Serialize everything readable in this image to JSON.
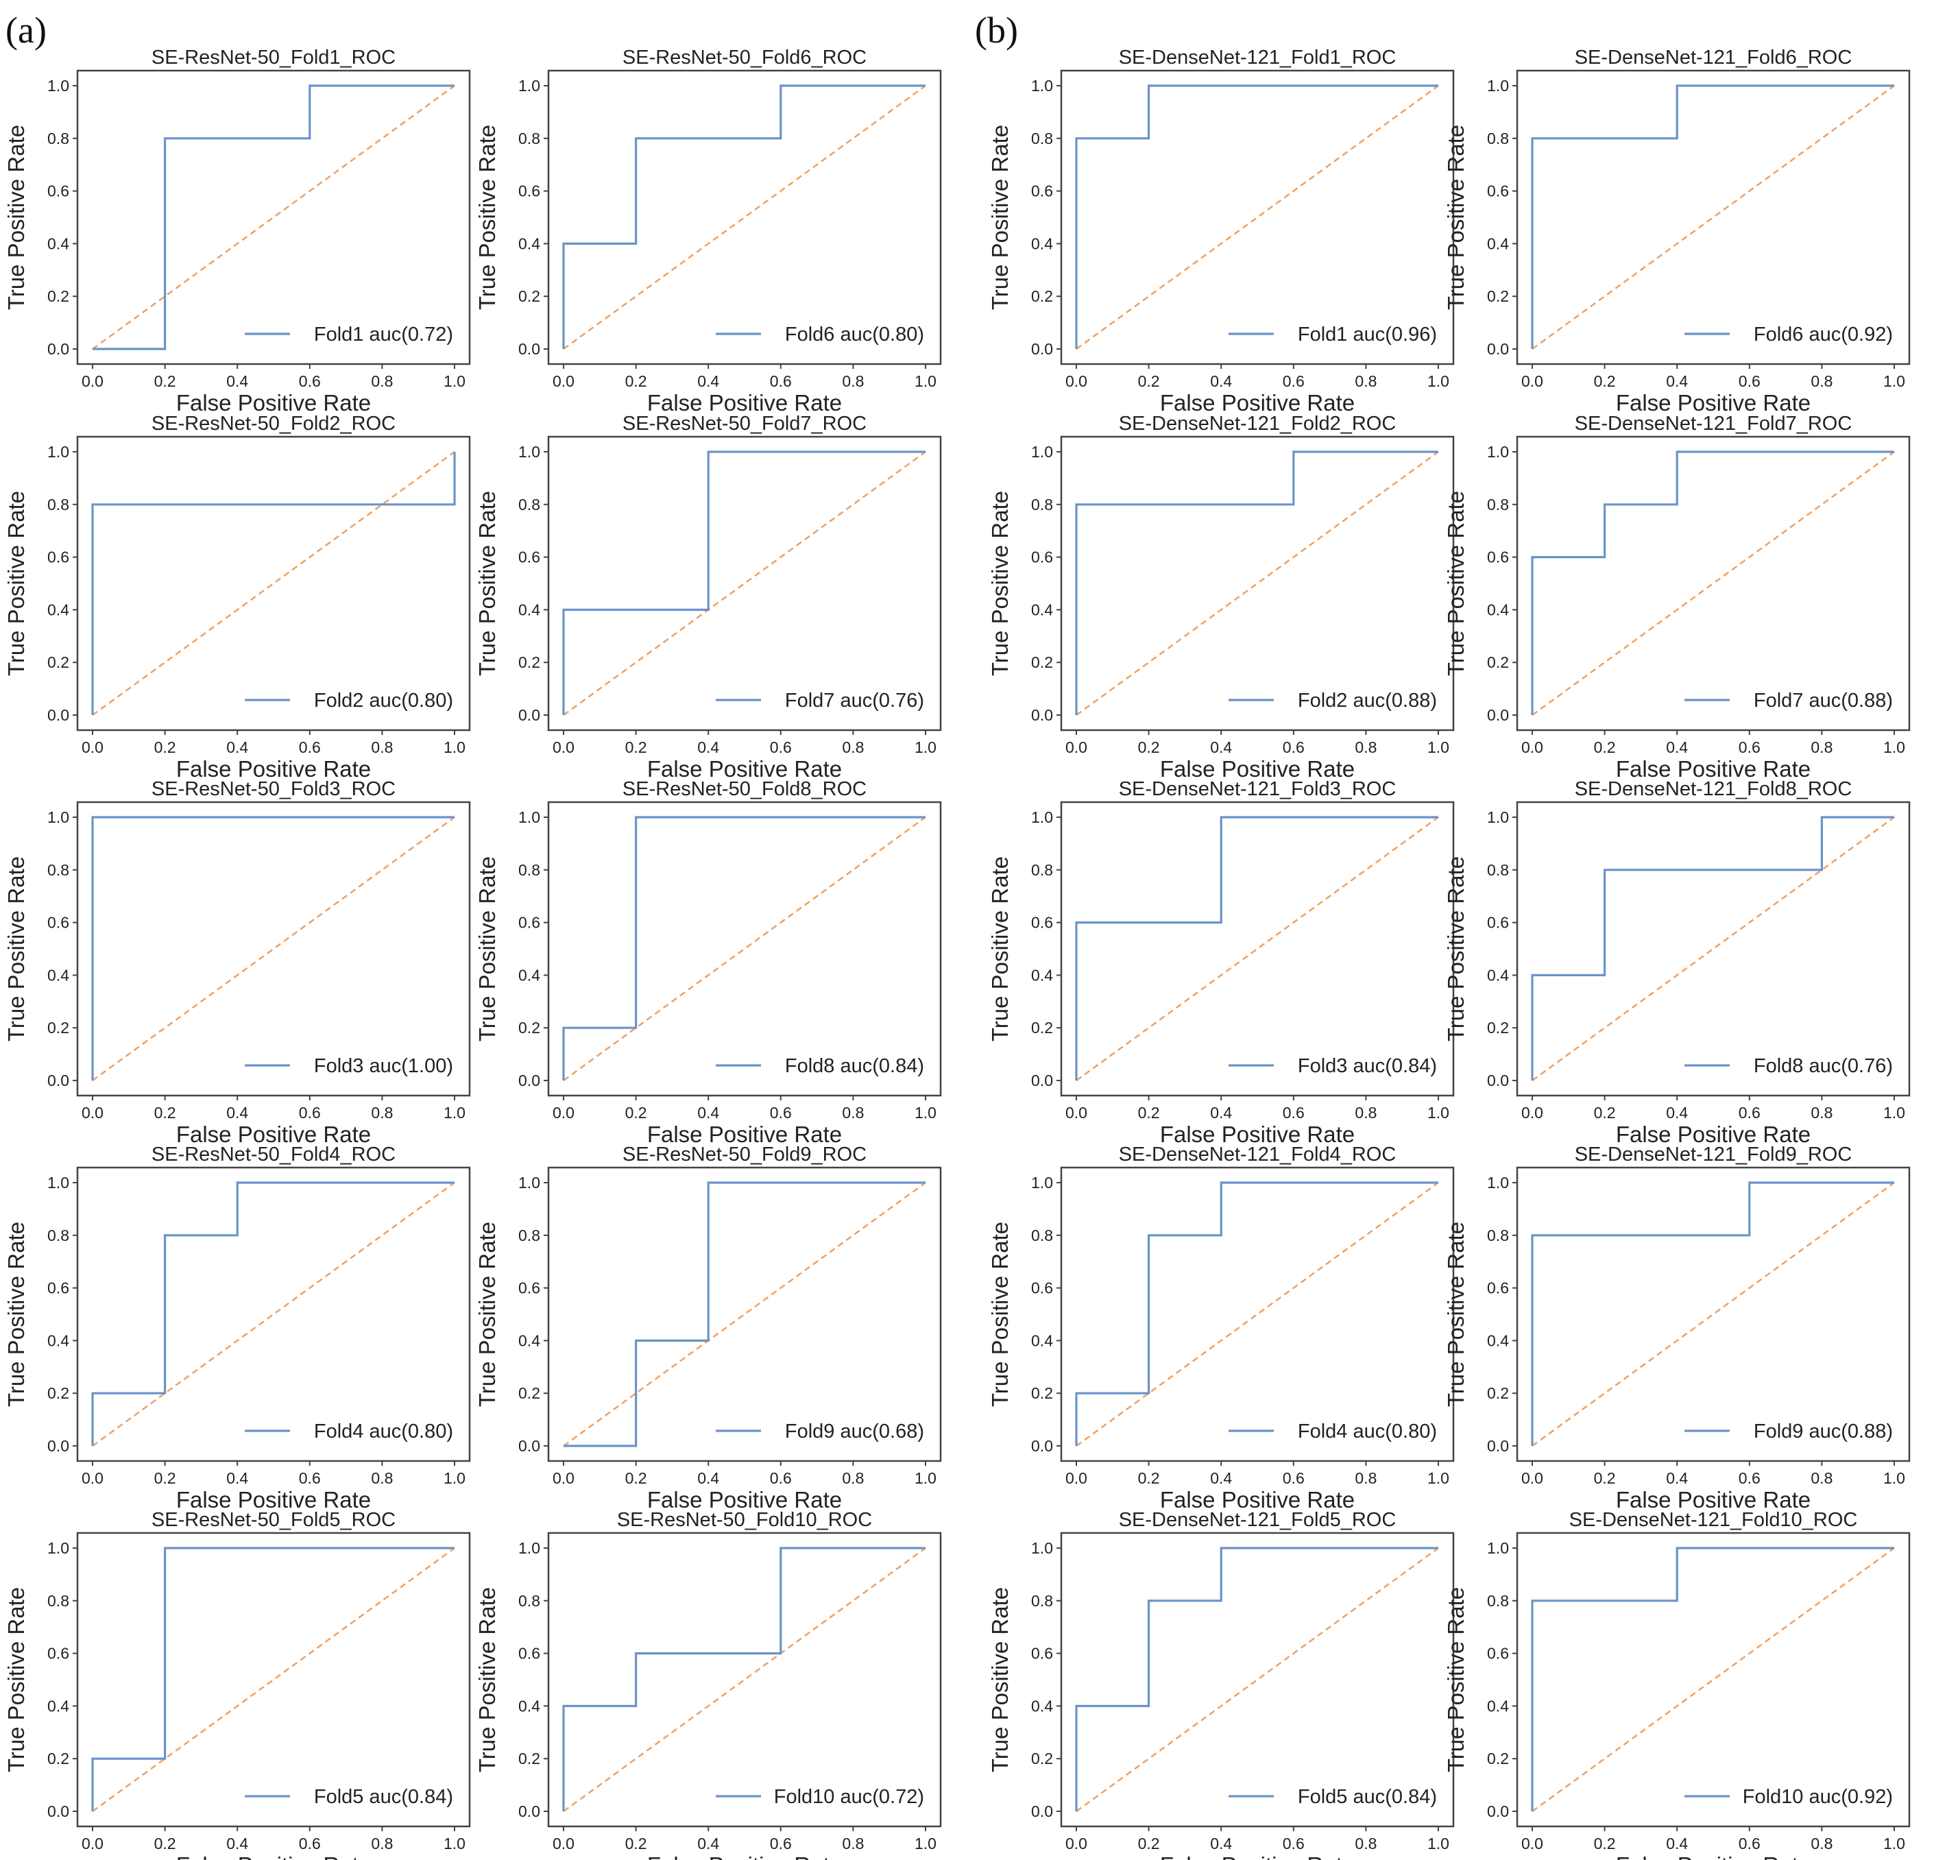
{
  "panel_labels": [
    "(a)",
    "(b)"
  ],
  "colors": {
    "roc": "#6a93c9",
    "diagonal": "#f0a060",
    "axes": "#444444",
    "text": "#222222"
  },
  "chart_data": [
    {
      "type": "line",
      "panel": "a",
      "title": "SE-ResNet-50_Fold1_ROC",
      "xlabel": "False Positive Rate",
      "ylabel": "True Positive Rate",
      "xlim": [
        0,
        1
      ],
      "ylim": [
        0,
        1
      ],
      "xticks": [
        "0.0",
        "0.2",
        "0.4",
        "0.6",
        "0.8",
        "1.0"
      ],
      "yticks": [
        "0.0",
        "0.2",
        "0.4",
        "0.6",
        "0.8",
        "1.0"
      ],
      "grid": false,
      "legend_position": "lower-right",
      "legend_label": "Fold1 auc(0.72)",
      "x": [
        0,
        0.2,
        0.2,
        0.6,
        0.6,
        1.0
      ],
      "y": [
        0,
        0,
        0.8,
        0.8,
        1.0,
        1.0
      ]
    },
    {
      "type": "line",
      "panel": "a",
      "title": "SE-ResNet-50_Fold2_ROC",
      "xlabel": "False Positive Rate",
      "ylabel": "True Positive Rate",
      "xlim": [
        0,
        1
      ],
      "ylim": [
        0,
        1
      ],
      "xticks": [
        "0.0",
        "0.2",
        "0.4",
        "0.6",
        "0.8",
        "1.0"
      ],
      "yticks": [
        "0.0",
        "0.2",
        "0.4",
        "0.6",
        "0.8",
        "1.0"
      ],
      "grid": false,
      "legend_position": "lower-right",
      "legend_label": "Fold2 auc(0.80)",
      "x": [
        0,
        0,
        1.0,
        1.0
      ],
      "y": [
        0,
        0.8,
        0.8,
        1.0
      ]
    },
    {
      "type": "line",
      "panel": "a",
      "title": "SE-ResNet-50_Fold3_ROC",
      "xlabel": "False Positive Rate",
      "ylabel": "True Positive Rate",
      "xlim": [
        0,
        1
      ],
      "ylim": [
        0,
        1
      ],
      "xticks": [
        "0.0",
        "0.2",
        "0.4",
        "0.6",
        "0.8",
        "1.0"
      ],
      "yticks": [
        "0.0",
        "0.2",
        "0.4",
        "0.6",
        "0.8",
        "1.0"
      ],
      "grid": false,
      "legend_position": "lower-right",
      "legend_label": "Fold3 auc(1.00)",
      "x": [
        0,
        0,
        1.0
      ],
      "y": [
        0,
        1.0,
        1.0
      ]
    },
    {
      "type": "line",
      "panel": "a",
      "title": "SE-ResNet-50_Fold4_ROC",
      "xlabel": "False Positive Rate",
      "ylabel": "True Positive Rate",
      "xlim": [
        0,
        1
      ],
      "ylim": [
        0,
        1
      ],
      "xticks": [
        "0.0",
        "0.2",
        "0.4",
        "0.6",
        "0.8",
        "1.0"
      ],
      "yticks": [
        "0.0",
        "0.2",
        "0.4",
        "0.6",
        "0.8",
        "1.0"
      ],
      "grid": false,
      "legend_position": "lower-right",
      "legend_label": "Fold4 auc(0.80)",
      "x": [
        0,
        0,
        0.2,
        0.2,
        0.4,
        0.4,
        1.0
      ],
      "y": [
        0,
        0.2,
        0.2,
        0.8,
        0.8,
        1.0,
        1.0
      ]
    },
    {
      "type": "line",
      "panel": "a",
      "title": "SE-ResNet-50_Fold5_ROC",
      "xlabel": "False Positive Rate",
      "ylabel": "True Positive Rate",
      "xlim": [
        0,
        1
      ],
      "ylim": [
        0,
        1
      ],
      "xticks": [
        "0.0",
        "0.2",
        "0.4",
        "0.6",
        "0.8",
        "1.0"
      ],
      "yticks": [
        "0.0",
        "0.2",
        "0.4",
        "0.6",
        "0.8",
        "1.0"
      ],
      "grid": false,
      "legend_position": "lower-right",
      "legend_label": "Fold5 auc(0.84)",
      "x": [
        0,
        0,
        0.2,
        0.2,
        1.0
      ],
      "y": [
        0,
        0.2,
        0.2,
        1.0,
        1.0
      ]
    },
    {
      "type": "line",
      "panel": "a",
      "title": "SE-ResNet-50_Fold6_ROC",
      "xlabel": "False Positive Rate",
      "ylabel": "True Positive Rate",
      "xlim": [
        0,
        1
      ],
      "ylim": [
        0,
        1
      ],
      "xticks": [
        "0.0",
        "0.2",
        "0.4",
        "0.6",
        "0.8",
        "1.0"
      ],
      "yticks": [
        "0.0",
        "0.2",
        "0.4",
        "0.6",
        "0.8",
        "1.0"
      ],
      "grid": false,
      "legend_position": "lower-right",
      "legend_label": "Fold6 auc(0.80)",
      "x": [
        0,
        0,
        0.2,
        0.2,
        0.6,
        0.6,
        1.0
      ],
      "y": [
        0,
        0.4,
        0.4,
        0.8,
        0.8,
        1.0,
        1.0
      ]
    },
    {
      "type": "line",
      "panel": "a",
      "title": "SE-ResNet-50_Fold7_ROC",
      "xlabel": "False Positive Rate",
      "ylabel": "True Positive Rate",
      "xlim": [
        0,
        1
      ],
      "ylim": [
        0,
        1
      ],
      "xticks": [
        "0.0",
        "0.2",
        "0.4",
        "0.6",
        "0.8",
        "1.0"
      ],
      "yticks": [
        "0.0",
        "0.2",
        "0.4",
        "0.6",
        "0.8",
        "1.0"
      ],
      "grid": false,
      "legend_position": "lower-right",
      "legend_label": "Fold7 auc(0.76)",
      "x": [
        0,
        0,
        0.4,
        0.4,
        1.0
      ],
      "y": [
        0,
        0.4,
        0.4,
        1.0,
        1.0
      ]
    },
    {
      "type": "line",
      "panel": "a",
      "title": "SE-ResNet-50_Fold8_ROC",
      "xlabel": "False Positive Rate",
      "ylabel": "True Positive Rate",
      "xlim": [
        0,
        1
      ],
      "ylim": [
        0,
        1
      ],
      "xticks": [
        "0.0",
        "0.2",
        "0.4",
        "0.6",
        "0.8",
        "1.0"
      ],
      "yticks": [
        "0.0",
        "0.2",
        "0.4",
        "0.6",
        "0.8",
        "1.0"
      ],
      "grid": false,
      "legend_position": "lower-right",
      "legend_label": "Fold8 auc(0.84)",
      "x": [
        0,
        0,
        0.2,
        0.2,
        1.0
      ],
      "y": [
        0,
        0.2,
        0.2,
        1.0,
        1.0
      ]
    },
    {
      "type": "line",
      "panel": "a",
      "title": "SE-ResNet-50_Fold9_ROC",
      "xlabel": "False Positive Rate",
      "ylabel": "True Positive Rate",
      "xlim": [
        0,
        1
      ],
      "ylim": [
        0,
        1
      ],
      "xticks": [
        "0.0",
        "0.2",
        "0.4",
        "0.6",
        "0.8",
        "1.0"
      ],
      "yticks": [
        "0.0",
        "0.2",
        "0.4",
        "0.6",
        "0.8",
        "1.0"
      ],
      "grid": false,
      "legend_position": "lower-right",
      "legend_label": "Fold9 auc(0.68)",
      "x": [
        0,
        0.2,
        0.2,
        0.4,
        0.4,
        1.0
      ],
      "y": [
        0,
        0,
        0.4,
        0.4,
        1.0,
        1.0
      ]
    },
    {
      "type": "line",
      "panel": "a",
      "title": "SE-ResNet-50_Fold10_ROC",
      "xlabel": "False Positive Rate",
      "ylabel": "True Positive Rate",
      "xlim": [
        0,
        1
      ],
      "ylim": [
        0,
        1
      ],
      "xticks": [
        "0.0",
        "0.2",
        "0.4",
        "0.6",
        "0.8",
        "1.0"
      ],
      "yticks": [
        "0.0",
        "0.2",
        "0.4",
        "0.6",
        "0.8",
        "1.0"
      ],
      "grid": false,
      "legend_position": "lower-right",
      "legend_label": "Fold10 auc(0.72)",
      "x": [
        0,
        0,
        0.2,
        0.2,
        0.6,
        0.6,
        1.0
      ],
      "y": [
        0,
        0.4,
        0.4,
        0.6,
        0.6,
        1.0,
        1.0
      ]
    },
    {
      "type": "line",
      "panel": "b",
      "title": "SE-DenseNet-121_Fold1_ROC",
      "xlabel": "False Positive Rate",
      "ylabel": "True Positive Rate",
      "xlim": [
        0,
        1
      ],
      "ylim": [
        0,
        1
      ],
      "xticks": [
        "0.0",
        "0.2",
        "0.4",
        "0.6",
        "0.8",
        "1.0"
      ],
      "yticks": [
        "0.0",
        "0.2",
        "0.4",
        "0.6",
        "0.8",
        "1.0"
      ],
      "grid": false,
      "legend_position": "lower-right",
      "legend_label": "Fold1 auc(0.96)",
      "x": [
        0,
        0,
        0.2,
        0.2,
        1.0
      ],
      "y": [
        0,
        0.8,
        0.8,
        1.0,
        1.0
      ]
    },
    {
      "type": "line",
      "panel": "b",
      "title": "SE-DenseNet-121_Fold2_ROC",
      "xlabel": "False Positive Rate",
      "ylabel": "True Positive Rate",
      "xlim": [
        0,
        1
      ],
      "ylim": [
        0,
        1
      ],
      "xticks": [
        "0.0",
        "0.2",
        "0.4",
        "0.6",
        "0.8",
        "1.0"
      ],
      "yticks": [
        "0.0",
        "0.2",
        "0.4",
        "0.6",
        "0.8",
        "1.0"
      ],
      "grid": false,
      "legend_position": "lower-right",
      "legend_label": "Fold2 auc(0.88)",
      "x": [
        0,
        0,
        0.6,
        0.6,
        1.0
      ],
      "y": [
        0,
        0.8,
        0.8,
        1.0,
        1.0
      ]
    },
    {
      "type": "line",
      "panel": "b",
      "title": "SE-DenseNet-121_Fold3_ROC",
      "xlabel": "False Positive Rate",
      "ylabel": "True Positive Rate",
      "xlim": [
        0,
        1
      ],
      "ylim": [
        0,
        1
      ],
      "xticks": [
        "0.0",
        "0.2",
        "0.4",
        "0.6",
        "0.8",
        "1.0"
      ],
      "yticks": [
        "0.0",
        "0.2",
        "0.4",
        "0.6",
        "0.8",
        "1.0"
      ],
      "grid": false,
      "legend_position": "lower-right",
      "legend_label": "Fold3 auc(0.84)",
      "x": [
        0,
        0,
        0.4,
        0.4,
        1.0
      ],
      "y": [
        0,
        0.6,
        0.6,
        1.0,
        1.0
      ]
    },
    {
      "type": "line",
      "panel": "b",
      "title": "SE-DenseNet-121_Fold4_ROC",
      "xlabel": "False Positive Rate",
      "ylabel": "True Positive Rate",
      "xlim": [
        0,
        1
      ],
      "ylim": [
        0,
        1
      ],
      "xticks": [
        "0.0",
        "0.2",
        "0.4",
        "0.6",
        "0.8",
        "1.0"
      ],
      "yticks": [
        "0.0",
        "0.2",
        "0.4",
        "0.6",
        "0.8",
        "1.0"
      ],
      "grid": false,
      "legend_position": "lower-right",
      "legend_label": "Fold4 auc(0.80)",
      "x": [
        0,
        0,
        0.2,
        0.2,
        0.4,
        0.4,
        1.0
      ],
      "y": [
        0,
        0.2,
        0.2,
        0.8,
        0.8,
        1.0,
        1.0
      ]
    },
    {
      "type": "line",
      "panel": "b",
      "title": "SE-DenseNet-121_Fold5_ROC",
      "xlabel": "False Positive Rate",
      "ylabel": "True Positive Rate",
      "xlim": [
        0,
        1
      ],
      "ylim": [
        0,
        1
      ],
      "xticks": [
        "0.0",
        "0.2",
        "0.4",
        "0.6",
        "0.8",
        "1.0"
      ],
      "yticks": [
        "0.0",
        "0.2",
        "0.4",
        "0.6",
        "0.8",
        "1.0"
      ],
      "grid": false,
      "legend_position": "lower-right",
      "legend_label": "Fold5 auc(0.84)",
      "x": [
        0,
        0,
        0.2,
        0.2,
        0.4,
        0.4,
        1.0
      ],
      "y": [
        0,
        0.4,
        0.4,
        0.8,
        0.8,
        1.0,
        1.0
      ]
    },
    {
      "type": "line",
      "panel": "b",
      "title": "SE-DenseNet-121_Fold6_ROC",
      "xlabel": "False Positive Rate",
      "ylabel": "True Positive Rate",
      "xlim": [
        0,
        1
      ],
      "ylim": [
        0,
        1
      ],
      "xticks": [
        "0.0",
        "0.2",
        "0.4",
        "0.6",
        "0.8",
        "1.0"
      ],
      "yticks": [
        "0.0",
        "0.2",
        "0.4",
        "0.6",
        "0.8",
        "1.0"
      ],
      "grid": false,
      "legend_position": "lower-right",
      "legend_label": "Fold6 auc(0.92)",
      "x": [
        0,
        0,
        0.4,
        0.4,
        1.0
      ],
      "y": [
        0,
        0.8,
        0.8,
        1.0,
        1.0
      ]
    },
    {
      "type": "line",
      "panel": "b",
      "title": "SE-DenseNet-121_Fold7_ROC",
      "xlabel": "False Positive Rate",
      "ylabel": "True Positive Rate",
      "xlim": [
        0,
        1
      ],
      "ylim": [
        0,
        1
      ],
      "xticks": [
        "0.0",
        "0.2",
        "0.4",
        "0.6",
        "0.8",
        "1.0"
      ],
      "yticks": [
        "0.0",
        "0.2",
        "0.4",
        "0.6",
        "0.8",
        "1.0"
      ],
      "grid": false,
      "legend_position": "lower-right",
      "legend_label": "Fold7 auc(0.88)",
      "x": [
        0,
        0,
        0.2,
        0.2,
        0.4,
        0.4,
        1.0
      ],
      "y": [
        0,
        0.6,
        0.6,
        0.8,
        0.8,
        1.0,
        1.0
      ]
    },
    {
      "type": "line",
      "panel": "b",
      "title": "SE-DenseNet-121_Fold8_ROC",
      "xlabel": "False Positive Rate",
      "ylabel": "True Positive Rate",
      "xlim": [
        0,
        1
      ],
      "ylim": [
        0,
        1
      ],
      "xticks": [
        "0.0",
        "0.2",
        "0.4",
        "0.6",
        "0.8",
        "1.0"
      ],
      "yticks": [
        "0.0",
        "0.2",
        "0.4",
        "0.6",
        "0.8",
        "1.0"
      ],
      "grid": false,
      "legend_position": "lower-right",
      "legend_label": "Fold8 auc(0.76)",
      "x": [
        0,
        0,
        0.2,
        0.2,
        0.8,
        0.8,
        1.0
      ],
      "y": [
        0,
        0.4,
        0.4,
        0.8,
        0.8,
        1.0,
        1.0
      ]
    },
    {
      "type": "line",
      "panel": "b",
      "title": "SE-DenseNet-121_Fold9_ROC",
      "xlabel": "False Positive Rate",
      "ylabel": "True Positive Rate",
      "xlim": [
        0,
        1
      ],
      "ylim": [
        0,
        1
      ],
      "xticks": [
        "0.0",
        "0.2",
        "0.4",
        "0.6",
        "0.8",
        "1.0"
      ],
      "yticks": [
        "0.0",
        "0.2",
        "0.4",
        "0.6",
        "0.8",
        "1.0"
      ],
      "grid": false,
      "legend_position": "lower-right",
      "legend_label": "Fold9 auc(0.88)",
      "x": [
        0,
        0,
        0.6,
        0.6,
        1.0
      ],
      "y": [
        0,
        0.8,
        0.8,
        1.0,
        1.0
      ]
    },
    {
      "type": "line",
      "panel": "b",
      "title": "SE-DenseNet-121_Fold10_ROC",
      "xlabel": "False Positive Rate",
      "ylabel": "True Positive Rate",
      "xlim": [
        0,
        1
      ],
      "ylim": [
        0,
        1
      ],
      "xticks": [
        "0.0",
        "0.2",
        "0.4",
        "0.6",
        "0.8",
        "1.0"
      ],
      "yticks": [
        "0.0",
        "0.2",
        "0.4",
        "0.6",
        "0.8",
        "1.0"
      ],
      "grid": false,
      "legend_position": "lower-right",
      "legend_label": "Fold10 auc(0.92)",
      "x": [
        0,
        0,
        0.4,
        0.4,
        1.0
      ],
      "y": [
        0,
        0.8,
        0.8,
        1.0,
        1.0
      ]
    }
  ]
}
